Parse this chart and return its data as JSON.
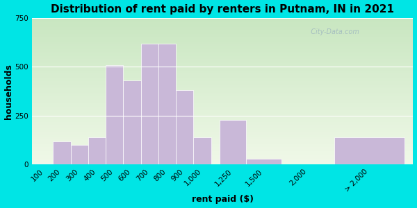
{
  "title": "Distribution of rent paid by renters in Putnam, IN in 2021",
  "xlabel": "rent paid ($)",
  "ylabel": "households",
  "bar_color": "#c9b8d8",
  "bar_edgecolor": "#ffffff",
  "tick_labels": [
    "100",
    "200",
    "300",
    "400",
    "500",
    "600",
    "700",
    "800",
    "900",
    "1,000",
    "1,250",
    "1,500",
    "2,000",
    "> 2,000"
  ],
  "values": [
    5,
    120,
    100,
    140,
    510,
    430,
    620,
    620,
    380,
    140,
    230,
    30,
    0,
    140
  ],
  "bar_lefts": [
    0,
    1,
    2,
    3,
    4,
    5,
    6,
    7,
    8,
    9,
    10.5,
    12,
    14,
    17
  ],
  "bar_widths": [
    1,
    1,
    1,
    1,
    1,
    1,
    1,
    1,
    1,
    1,
    1.5,
    2,
    3,
    4
  ],
  "ylim": [
    0,
    750
  ],
  "yticks": [
    0,
    250,
    500,
    750
  ],
  "xlim_min": -0.2,
  "xlim_max": 21.5,
  "bg_outer": "#00e5e5",
  "bg_inner_top": "#c8e6c0",
  "bg_inner_bottom": "#f0f8e8",
  "title_fontsize": 11,
  "axis_label_fontsize": 9,
  "tick_fontsize": 7.5,
  "watermark_text": "  City-Data.com"
}
